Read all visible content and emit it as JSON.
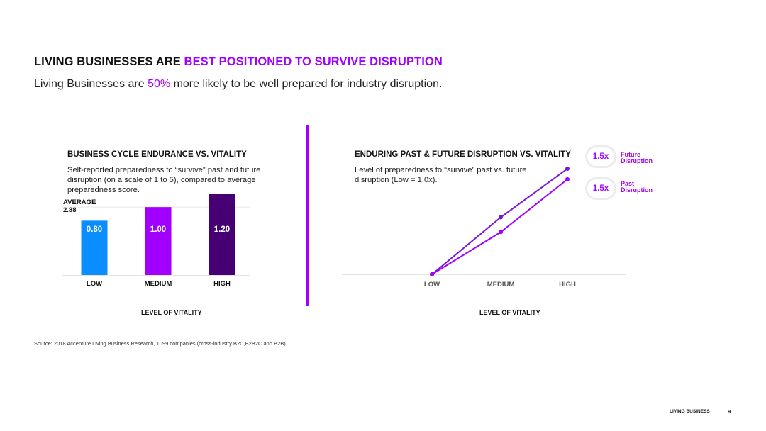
{
  "slide": {
    "headline_part1": "LIVING BUSINESSES ARE ",
    "headline_accent": "BEST POSITIONED TO SURVIVE DISRUPTION",
    "subtitle_part1": "Living Businesses are ",
    "subtitle_accent": "50%",
    "subtitle_part2": " more likely to be well prepared for industry disruption.",
    "source": "Source: 2018 Accenture Living Business Research, 1099 companies (cross-industry B2C,B2B2C and B2B)",
    "footer_label": "LIVING BUSINESS",
    "page_number": "9"
  },
  "colors": {
    "accent": "#a100ff",
    "bar_low": "#0a8dff",
    "bar_medium": "#a100ff",
    "bar_high": "#460073",
    "line_future": "#7b15d6",
    "line_past": "#a100ff"
  },
  "chart_data": [
    {
      "type": "bar",
      "title": "BUSINESS CYCLE ENDURANCE VS. VITALITY",
      "description": "Self-reported preparedness to “survive” past and future disruption (on a scale of 1 to 5), compared to average preparedness score.",
      "xlabel": "LEVEL OF VITALITY",
      "categories": [
        "LOW",
        "MEDIUM",
        "HIGH"
      ],
      "values": [
        0.8,
        1.0,
        1.2
      ],
      "value_labels": [
        "0.80",
        "1.00",
        "1.20"
      ],
      "reference_line": {
        "label": "AVERAGE",
        "value_label": "2.88",
        "at_ratio": 1.0
      },
      "ylim": [
        0,
        1.3
      ],
      "grid": false
    },
    {
      "type": "line",
      "title": "ENDURING PAST & FUTURE DISRUPTION VS. VITALITY",
      "description": "Level of preparedness to “survive” past vs. future disruption (Low = 1.0x).",
      "xlabel": "LEVEL OF VITALITY",
      "categories": [
        "LOW",
        "MEDIUM",
        "HIGH"
      ],
      "ylim": [
        1.0,
        1.5
      ],
      "series": [
        {
          "name": "Future Disruption",
          "values": [
            1.0,
            1.27,
            1.5
          ],
          "end_label": "1.5x"
        },
        {
          "name": "Past Disruption",
          "values": [
            1.0,
            1.2,
            1.45
          ],
          "end_label": "1.5x"
        }
      ],
      "legend": {
        "placement": "top-right",
        "future_line1": "Future",
        "future_line2": "Disruption",
        "past_line1": "Past",
        "past_line2": "Disruption"
      },
      "grid": false
    }
  ]
}
